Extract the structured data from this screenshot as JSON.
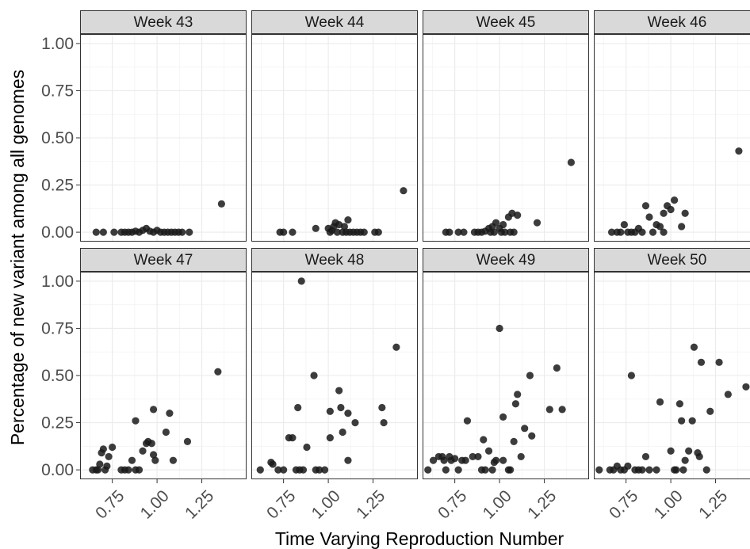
{
  "chart_data": {
    "type": "scatter",
    "xlabel": "Time Varying Reproduction Number",
    "ylabel": "Percentage of new variant among all genomes",
    "xlim": [
      0.57,
      1.5
    ],
    "ylim": [
      -0.05,
      1.05
    ],
    "x_ticks": [
      0.75,
      1.0,
      1.25
    ],
    "x_tick_labels": [
      "0.75",
      "1.00",
      "1.25"
    ],
    "y_ticks": [
      0,
      0.25,
      0.5,
      0.75,
      1.0
    ],
    "y_tick_labels": [
      "0.00",
      "0.25",
      "0.50",
      "0.75",
      "1.00"
    ],
    "grid": true,
    "point_color": "#1a1a1a",
    "panels": [
      {
        "title": "Week 43",
        "points": [
          [
            0.66,
            0.0
          ],
          [
            0.7,
            0.0
          ],
          [
            0.76,
            0.0
          ],
          [
            0.8,
            0.0
          ],
          [
            0.82,
            0.0
          ],
          [
            0.84,
            0.0
          ],
          [
            0.86,
            0.0
          ],
          [
            0.88,
            0.005
          ],
          [
            0.9,
            0.0
          ],
          [
            0.92,
            0.01
          ],
          [
            0.94,
            0.02
          ],
          [
            0.96,
            0.005
          ],
          [
            0.98,
            0.0
          ],
          [
            1.0,
            0.01
          ],
          [
            1.02,
            0.0
          ],
          [
            1.04,
            0.0
          ],
          [
            1.06,
            0.0
          ],
          [
            1.08,
            0.0
          ],
          [
            1.1,
            0.0
          ],
          [
            1.12,
            0.0
          ],
          [
            1.14,
            0.0
          ],
          [
            1.18,
            0.0
          ],
          [
            1.36,
            0.15
          ]
        ]
      },
      {
        "title": "Week 44",
        "points": [
          [
            0.73,
            0.0
          ],
          [
            0.75,
            0.0
          ],
          [
            0.8,
            0.0
          ],
          [
            0.93,
            0.02
          ],
          [
            1.0,
            0.02
          ],
          [
            1.01,
            0.0
          ],
          [
            1.02,
            0.01
          ],
          [
            1.03,
            0.03
          ],
          [
            1.04,
            0.05
          ],
          [
            1.05,
            0.0
          ],
          [
            1.06,
            0.04
          ],
          [
            1.08,
            0.0
          ],
          [
            1.09,
            0.03
          ],
          [
            1.1,
            0.0
          ],
          [
            1.11,
            0.065
          ],
          [
            1.12,
            0.0
          ],
          [
            1.14,
            0.0
          ],
          [
            1.16,
            0.0
          ],
          [
            1.18,
            0.0
          ],
          [
            1.2,
            0.0
          ],
          [
            1.26,
            0.0
          ],
          [
            1.28,
            0.0
          ],
          [
            1.42,
            0.22
          ]
        ]
      },
      {
        "title": "Week 45",
        "points": [
          [
            0.7,
            0.0
          ],
          [
            0.72,
            0.0
          ],
          [
            0.77,
            0.0
          ],
          [
            0.8,
            0.0
          ],
          [
            0.86,
            0.0
          ],
          [
            0.88,
            0.0
          ],
          [
            0.9,
            0.0
          ],
          [
            0.92,
            0.005
          ],
          [
            0.94,
            0.02
          ],
          [
            0.95,
            0.0
          ],
          [
            0.96,
            0.03
          ],
          [
            0.97,
            0.0
          ],
          [
            0.98,
            0.05
          ],
          [
            1.0,
            0.02
          ],
          [
            1.01,
            0.0
          ],
          [
            1.02,
            0.04
          ],
          [
            1.03,
            0.0
          ],
          [
            1.05,
            0.08
          ],
          [
            1.06,
            0.0
          ],
          [
            1.07,
            0.1
          ],
          [
            1.08,
            0.0
          ],
          [
            1.1,
            0.09
          ],
          [
            1.21,
            0.05
          ],
          [
            1.4,
            0.37
          ]
        ]
      },
      {
        "title": "Week 46",
        "points": [
          [
            0.67,
            0.0
          ],
          [
            0.7,
            0.0
          ],
          [
            0.72,
            0.0
          ],
          [
            0.74,
            0.04
          ],
          [
            0.76,
            0.0
          ],
          [
            0.78,
            0.0
          ],
          [
            0.8,
            0.0
          ],
          [
            0.82,
            0.02
          ],
          [
            0.84,
            0.0
          ],
          [
            0.86,
            0.14
          ],
          [
            0.88,
            0.08
          ],
          [
            0.9,
            0.0
          ],
          [
            0.92,
            0.04
          ],
          [
            0.94,
            0.03
          ],
          [
            0.96,
            0.1
          ],
          [
            0.98,
            0.14
          ],
          [
            1.0,
            0.12
          ],
          [
            1.02,
            0.17
          ],
          [
            1.06,
            0.03
          ],
          [
            1.08,
            0.1
          ],
          [
            0.96,
            0.0
          ],
          [
            1.38,
            0.43
          ]
        ]
      },
      {
        "title": "Week 47",
        "points": [
          [
            0.64,
            0.0
          ],
          [
            0.66,
            0.0
          ],
          [
            0.67,
            0.0
          ],
          [
            0.68,
            0.03
          ],
          [
            0.69,
            0.09
          ],
          [
            0.7,
            0.11
          ],
          [
            0.71,
            0.0
          ],
          [
            0.72,
            0.02
          ],
          [
            0.73,
            0.07
          ],
          [
            0.75,
            0.12
          ],
          [
            0.8,
            0.0
          ],
          [
            0.82,
            0.0
          ],
          [
            0.84,
            0.0
          ],
          [
            0.86,
            0.05
          ],
          [
            0.88,
            0.26
          ],
          [
            0.88,
            0.0
          ],
          [
            0.9,
            0.0
          ],
          [
            0.92,
            0.1
          ],
          [
            0.94,
            0.14
          ],
          [
            0.95,
            0.15
          ],
          [
            0.97,
            0.14
          ],
          [
            0.98,
            0.08
          ],
          [
            0.99,
            0.05
          ],
          [
            0.98,
            0.32
          ],
          [
            1.05,
            0.2
          ],
          [
            1.07,
            0.3
          ],
          [
            1.09,
            0.05
          ],
          [
            1.17,
            0.15
          ],
          [
            1.34,
            0.52
          ]
        ]
      },
      {
        "title": "Week 48",
        "points": [
          [
            0.62,
            0.0
          ],
          [
            0.68,
            0.04
          ],
          [
            0.69,
            0.03
          ],
          [
            0.72,
            0.0
          ],
          [
            0.75,
            0.0
          ],
          [
            0.78,
            0.17
          ],
          [
            0.8,
            0.17
          ],
          [
            0.82,
            0.0
          ],
          [
            0.84,
            0.0
          ],
          [
            0.86,
            0.0
          ],
          [
            0.88,
            0.12
          ],
          [
            0.92,
            0.5
          ],
          [
            0.93,
            0.0
          ],
          [
            0.95,
            0.0
          ],
          [
            0.98,
            0.0
          ],
          [
            1.01,
            0.17
          ],
          [
            1.01,
            0.31
          ],
          [
            1.06,
            0.42
          ],
          [
            1.07,
            0.33
          ],
          [
            1.08,
            0.2
          ],
          [
            1.11,
            0.05
          ],
          [
            1.11,
            0.3
          ],
          [
            1.15,
            0.25
          ],
          [
            1.3,
            0.33
          ],
          [
            1.31,
            0.25
          ],
          [
            1.38,
            0.65
          ],
          [
            0.83,
            0.33
          ],
          [
            0.85,
            1.0
          ]
        ]
      },
      {
        "title": "Week 49",
        "points": [
          [
            0.6,
            0.0
          ],
          [
            0.63,
            0.05
          ],
          [
            0.66,
            0.07
          ],
          [
            0.68,
            0.07
          ],
          [
            0.69,
            0.05
          ],
          [
            0.7,
            0.0
          ],
          [
            0.72,
            0.07
          ],
          [
            0.73,
            0.05
          ],
          [
            0.75,
            0.06
          ],
          [
            0.77,
            0.0
          ],
          [
            0.79,
            0.05
          ],
          [
            0.81,
            0.05
          ],
          [
            0.82,
            0.26
          ],
          [
            0.85,
            0.07
          ],
          [
            0.88,
            0.07
          ],
          [
            0.9,
            0.0
          ],
          [
            0.91,
            0.16
          ],
          [
            0.92,
            0.0
          ],
          [
            0.94,
            0.1
          ],
          [
            0.96,
            0.0
          ],
          [
            0.97,
            0.04
          ],
          [
            0.98,
            0.05
          ],
          [
            1.0,
            0.75
          ],
          [
            1.02,
            0.28
          ],
          [
            1.05,
            0.0
          ],
          [
            1.06,
            0.0
          ],
          [
            1.08,
            0.15
          ],
          [
            1.09,
            0.35
          ],
          [
            1.1,
            0.4
          ],
          [
            1.12,
            0.07
          ],
          [
            1.14,
            0.22
          ],
          [
            1.17,
            0.5
          ],
          [
            1.18,
            0.18
          ],
          [
            1.28,
            0.32
          ],
          [
            1.32,
            0.54
          ],
          [
            1.35,
            0.32
          ],
          [
            1.02,
            0.05
          ]
        ]
      },
      {
        "title": "Week 50",
        "points": [
          [
            0.6,
            0.0
          ],
          [
            0.66,
            0.0
          ],
          [
            0.68,
            0.0
          ],
          [
            0.7,
            0.02
          ],
          [
            0.72,
            0.0
          ],
          [
            0.74,
            0.0
          ],
          [
            0.76,
            0.02
          ],
          [
            0.78,
            0.5
          ],
          [
            0.8,
            0.0
          ],
          [
            0.82,
            0.0
          ],
          [
            0.84,
            0.0
          ],
          [
            0.86,
            0.07
          ],
          [
            0.88,
            0.0
          ],
          [
            0.92,
            0.0
          ],
          [
            0.94,
            0.36
          ],
          [
            1.0,
            0.1
          ],
          [
            1.02,
            0.0
          ],
          [
            1.03,
            0.0
          ],
          [
            1.05,
            0.35
          ],
          [
            1.06,
            0.26
          ],
          [
            1.07,
            0.0
          ],
          [
            1.08,
            0.05
          ],
          [
            1.1,
            0.1
          ],
          [
            1.12,
            0.26
          ],
          [
            1.13,
            0.65
          ],
          [
            1.15,
            0.09
          ],
          [
            1.16,
            0.07
          ],
          [
            1.17,
            0.57
          ],
          [
            1.2,
            0.0
          ],
          [
            1.22,
            0.31
          ],
          [
            1.27,
            0.57
          ],
          [
            1.32,
            0.4
          ],
          [
            1.42,
            0.44
          ]
        ]
      }
    ]
  }
}
